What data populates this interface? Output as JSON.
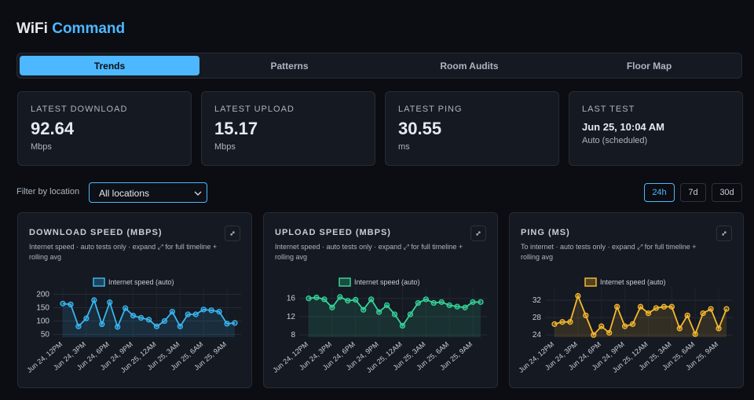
{
  "header": {
    "brand": "WiFi",
    "brand_accent": "Command"
  },
  "tabs": [
    {
      "label": "Trends",
      "active": true
    },
    {
      "label": "Patterns",
      "active": false
    },
    {
      "label": "Room Audits",
      "active": false
    },
    {
      "label": "Floor Map",
      "active": false
    }
  ],
  "stats": [
    {
      "label": "LATEST DOWNLOAD",
      "value": 92.64,
      "unit": "Mbps"
    },
    {
      "label": "LATEST UPLOAD",
      "value": 15.17,
      "unit": "Mbps"
    },
    {
      "label": "LATEST PING",
      "value": 30.55,
      "unit": "ms"
    },
    {
      "label": "LAST TEST",
      "value": "Jun 25, 10:04 AM",
      "unit": "Auto (scheduled)"
    }
  ],
  "filter": {
    "label": "Filter by location",
    "selected": "All locations"
  },
  "ranges": [
    {
      "label": "24h",
      "active": true
    },
    {
      "label": "7d",
      "active": false
    },
    {
      "label": "30d",
      "active": false
    }
  ],
  "charts": [
    {
      "type": "line",
      "title": "DOWNLOAD SPEED (MBPS)",
      "subtitle": "Internet speed · auto tests only · expand ⤢ for full timeline + rolling avg",
      "categories": [
        "Jun 24, 12PM",
        null,
        null,
        "Jun 24, 3PM",
        null,
        null,
        "Jun 24, 6PM",
        null,
        null,
        "Jun 24, 9PM",
        null,
        null,
        "Jun 25, 12AM",
        null,
        null,
        "Jun 25, 3AM",
        null,
        null,
        "Jun 25, 6AM",
        null,
        null,
        "Jun 25, 9AM",
        null
      ],
      "series": [
        {
          "name": "Internet speed (auto)",
          "color": "#38b6f0",
          "values": [
            165,
            162,
            80,
            110,
            178,
            88,
            170,
            78,
            148,
            120,
            112,
            105,
            80,
            100,
            135,
            80,
            125,
            125,
            143,
            140,
            135,
            90,
            93
          ]
        }
      ],
      "ylim": [
        40,
        210
      ],
      "yticks": [
        50,
        100,
        150,
        200
      ],
      "grid": true
    },
    {
      "type": "line",
      "title": "UPLOAD SPEED (MBPS)",
      "subtitle": "Internet speed · auto tests only · expand ⤢ for full timeline + rolling avg",
      "categories": [
        "Jun 24, 12PM",
        null,
        null,
        "Jun 24, 3PM",
        null,
        null,
        "Jun 24, 6PM",
        null,
        null,
        "Jun 24, 9PM",
        null,
        null,
        "Jun 25, 12AM",
        null,
        null,
        "Jun 25, 3AM",
        null,
        null,
        "Jun 25, 6AM",
        null,
        null,
        "Jun 25, 9AM",
        null
      ],
      "series": [
        {
          "name": "Internet speed (auto)",
          "color": "#34d399",
          "values": [
            16,
            16.2,
            15.8,
            14,
            16.3,
            15.5,
            15.7,
            13.5,
            15.8,
            13,
            14.5,
            12.5,
            10,
            12.5,
            15,
            15.8,
            15,
            15.2,
            14.5,
            14.2,
            14,
            15.2,
            15.2
          ]
        }
      ],
      "ylim": [
        7.5,
        17.5
      ],
      "yticks": [
        8,
        12,
        16
      ],
      "grid": true
    },
    {
      "type": "line",
      "title": "PING (MS)",
      "subtitle": "To internet · auto tests only · expand ⤢ for full timeline + rolling avg",
      "categories": [
        "Jun 24, 12PM",
        null,
        null,
        "Jun 24, 3PM",
        null,
        null,
        "Jun 24, 6PM",
        null,
        null,
        "Jun 24, 9PM",
        null,
        null,
        "Jun 25, 12AM",
        null,
        null,
        "Jun 25, 3AM",
        null,
        null,
        "Jun 25, 6AM",
        null,
        null,
        "Jun 25, 9AM",
        null
      ],
      "series": [
        {
          "name": "Internet speed (auto)",
          "color": "#f5b82e",
          "values": [
            26.5,
            27,
            27,
            33,
            28.5,
            24,
            26,
            24.5,
            30.5,
            26,
            26.5,
            30.5,
            29,
            30.2,
            30.5,
            30.5,
            25.5,
            28.5,
            24.2,
            29,
            30,
            25.5,
            30
          ]
        }
      ],
      "ylim": [
        23.5,
        34
      ],
      "yticks": [
        24,
        28,
        32
      ],
      "grid": true
    }
  ]
}
